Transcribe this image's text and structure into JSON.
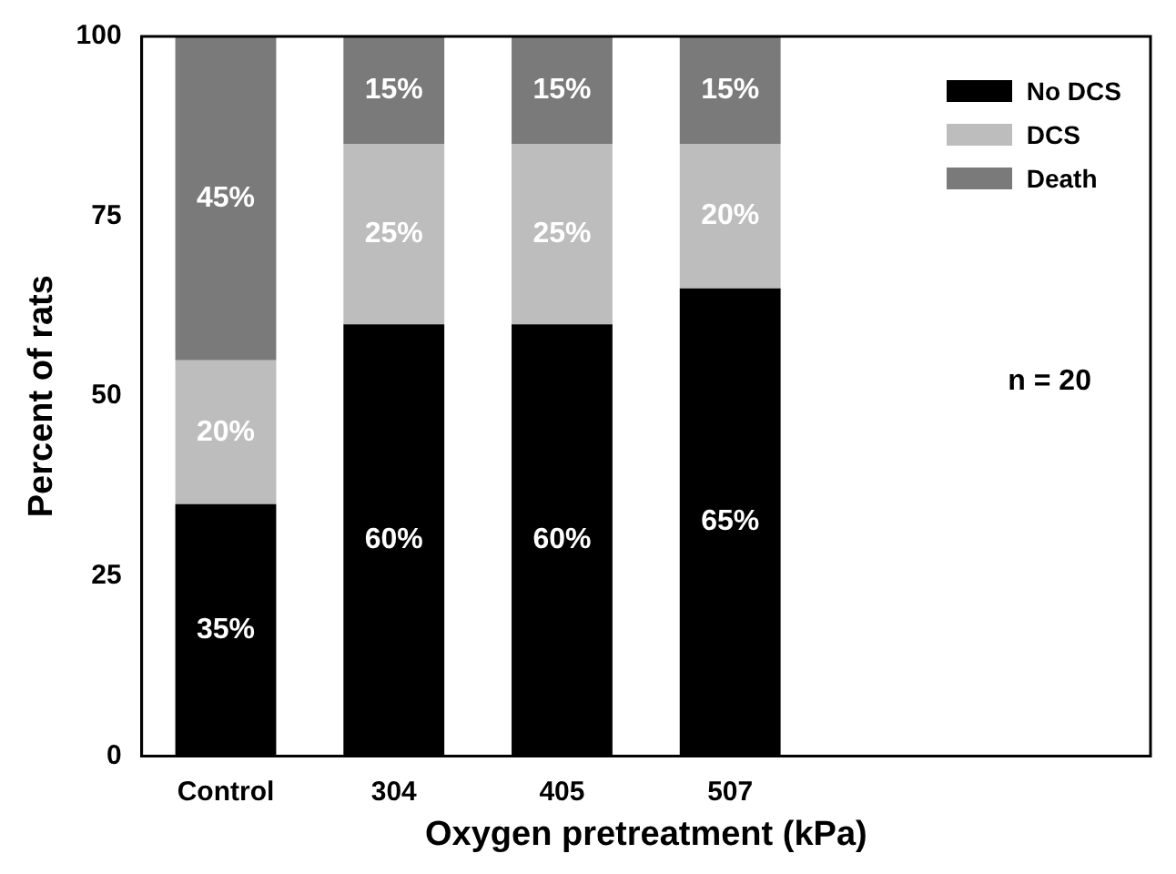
{
  "chart_data": {
    "type": "bar",
    "stacked": true,
    "xlabel": "Oxygen pretreatment (kPa)",
    "ylabel": "Percent of rats",
    "categories": [
      "Control",
      "304",
      "405",
      "507",
      null,
      null
    ],
    "series": [
      {
        "name": "No DCS",
        "color": "#000000",
        "values": [
          35,
          60,
          60,
          65,
          null,
          null
        ],
        "value_labels": [
          "35%",
          "60%",
          "60%",
          "65%",
          null,
          null
        ]
      },
      {
        "name": "DCS",
        "color": "#bdbdbd",
        "values": [
          20,
          25,
          25,
          20,
          null,
          null
        ],
        "value_labels": [
          "20%",
          "25%",
          "25%",
          "20%",
          null,
          null
        ]
      },
      {
        "name": "Death",
        "color": "#7a7a7a",
        "values": [
          45,
          15,
          15,
          15,
          null,
          null
        ],
        "value_labels": [
          "45%",
          "15%",
          "15%",
          "15%",
          null,
          null
        ]
      }
    ],
    "ylim": [
      0,
      100
    ],
    "yticks": [
      0,
      25,
      50,
      75,
      100
    ],
    "grid": false,
    "legend": "top right",
    "annotations": [
      "n = 20"
    ]
  }
}
